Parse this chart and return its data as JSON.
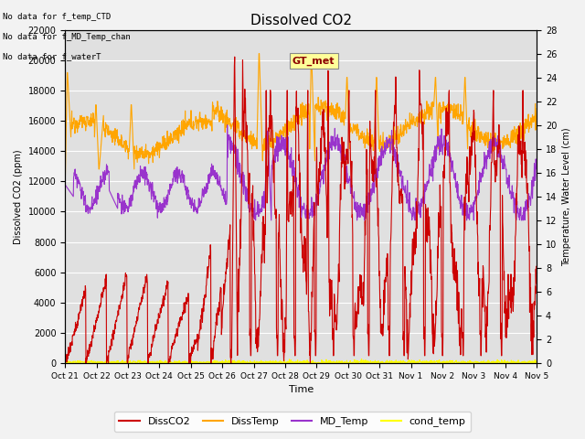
{
  "title": "Dissolved CO2",
  "xlabel": "Time",
  "ylabel_left": "Dissolved CO2 (ppm)",
  "ylabel_right": "Temperature, Water Level (cm)",
  "annotations": [
    "No data for f_temp_CTD",
    "No data for f_MD_Temp_chan",
    "No data for f_waterT"
  ],
  "gt_met_label": "GT_met",
  "xtick_labels": [
    "Oct 21",
    "Oct 22",
    "Oct 23",
    "Oct 24",
    "Oct 25",
    "Oct 26",
    "Oct 27",
    "Oct 28",
    "Oct 29",
    "Oct 30",
    "Oct 31",
    "Nov 1",
    "Nov 2",
    "Nov 3",
    "Nov 4",
    "Nov 5"
  ],
  "ylim_left": [
    0,
    22000
  ],
  "ylim_right": [
    0,
    28
  ],
  "yticks_left": [
    0,
    2000,
    4000,
    6000,
    8000,
    10000,
    12000,
    14000,
    16000,
    18000,
    20000,
    22000
  ],
  "yticks_right": [
    0,
    2,
    4,
    6,
    8,
    10,
    12,
    14,
    16,
    18,
    20,
    22,
    24,
    26,
    28
  ],
  "colors": {
    "DissCO2": "#CC0000",
    "DissTemp": "#FFA500",
    "MD_Temp": "#9933CC",
    "cond_temp": "#FFFF00",
    "background": "#E0E0E0",
    "grid": "#FFFFFF"
  }
}
